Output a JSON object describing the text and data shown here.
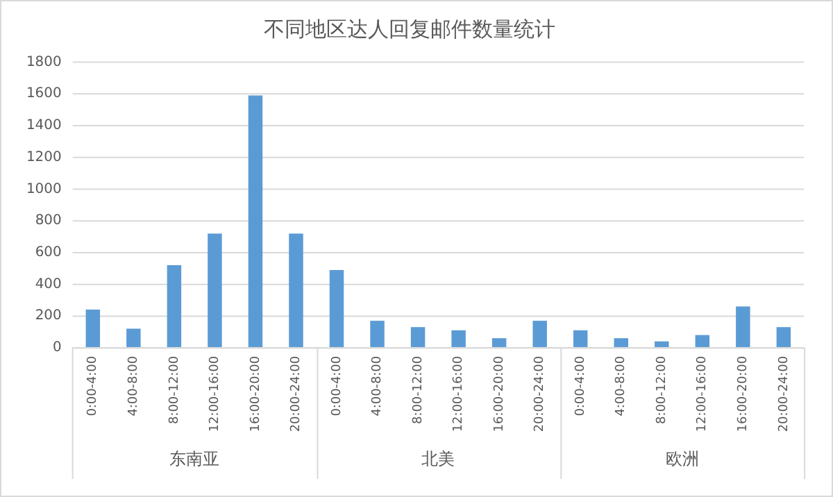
{
  "chart_data": {
    "type": "bar",
    "title": "不同地区达人回复邮件数量统计",
    "categories": [
      "0:00-4:00",
      "4:00-8:00",
      "8:00-12:00",
      "12:00-16:00",
      "16:00-20:00",
      "20:00-24:00",
      "0:00-4:00",
      "4:00-8:00",
      "8:00-12:00",
      "12:00-16:00",
      "16:00-20:00",
      "20:00-24:00",
      "0:00-4:00",
      "4:00-8:00",
      "8:00-12:00",
      "12:00-16:00",
      "16:00-20:00",
      "20:00-24:00"
    ],
    "values": [
      240,
      120,
      520,
      720,
      1590,
      720,
      490,
      170,
      130,
      110,
      60,
      170,
      110,
      60,
      40,
      80,
      260,
      130
    ],
    "color": "#5b9bd5",
    "annotations": [
      "东南亚",
      "北美",
      "欧洲"
    ],
    "ylim": [
      0,
      1800
    ],
    "yticks": [
      0,
      200,
      400,
      600,
      800,
      1000,
      1200,
      1400,
      1600,
      1800
    ],
    "grid": "y"
  }
}
